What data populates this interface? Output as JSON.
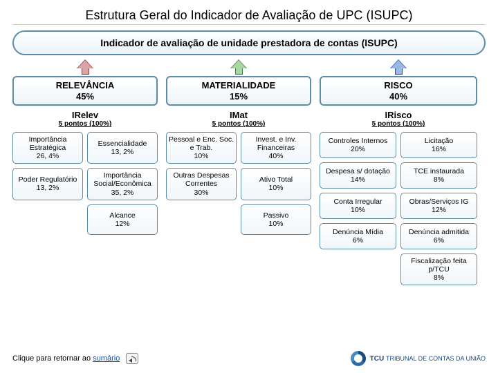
{
  "title": "Estrutura Geral do Indicador de Avaliação de UPC (ISUPC)",
  "main_label": "Indicador de avaliação de unidade prestadora de contas (ISUPC)",
  "columns": [
    {
      "header_line1": "RELEVÂNCIA",
      "header_line2": "45%",
      "arrow_color": "#8a3a3a",
      "arrow_fill": "#d9a5a5",
      "sub": "IRelev",
      "points": "5 pontos (100%)",
      "cells": [
        {
          "t": "Importância Estratégica",
          "p": "26, 4%"
        },
        {
          "t": "Essencialidade",
          "p": "13, 2%"
        },
        {
          "t": "Poder Regulatório",
          "p": "13, 2%"
        },
        {
          "t": "Importância Social/Econômica",
          "p": "35, 2%"
        },
        {
          "t": "",
          "p": ""
        },
        {
          "t": "Alcance",
          "p": "12%"
        }
      ]
    },
    {
      "header_line1": "MATERIALIDADE",
      "header_line2": "15%",
      "arrow_color": "#3a7a3a",
      "arrow_fill": "#a9d6a4",
      "sub": "IMat",
      "points": "5 pontos (100%)",
      "cells": [
        {
          "t": "Pessoal e Enc. Soc. e Trab.",
          "p": "10%"
        },
        {
          "t": "Invest. e Inv. Financeiras",
          "p": "40%"
        },
        {
          "t": "Outras Despesas Correntes",
          "p": "30%"
        },
        {
          "t": "Ativo Total",
          "p": "10%"
        },
        {
          "t": "",
          "p": ""
        },
        {
          "t": "Passivo",
          "p": "10%"
        }
      ]
    },
    {
      "header_line1": "RISCO",
      "header_line2": "40%",
      "arrow_color": "#2a4a9a",
      "arrow_fill": "#9ab8e6",
      "sub": "IRisco",
      "points": "5 pontos (100%)",
      "cells": [
        {
          "t": "Controles Internos",
          "p": "20%"
        },
        {
          "t": "Licitação",
          "p": "16%"
        },
        {
          "t": "Despesa s/ dotação",
          "p": "14%"
        },
        {
          "t": "TCE instaurada",
          "p": "8%"
        },
        {
          "t": "Conta Irregular",
          "p": "10%"
        },
        {
          "t": "Obras/Serviços IG",
          "p": "12%"
        },
        {
          "t": "Denúncia Mídia",
          "p": "6%"
        },
        {
          "t": "Denúncia admitida",
          "p": "6%"
        },
        {
          "t": "",
          "p": ""
        },
        {
          "t": "Fiscalização feita p/TCU",
          "p": "8%"
        }
      ]
    }
  ],
  "footer": {
    "return_prefix": "Clique para retornar ao ",
    "return_link": "sumário",
    "org": "TRIBUNAL DE CONTAS DA UNIÃO",
    "org_short": "TCU"
  }
}
